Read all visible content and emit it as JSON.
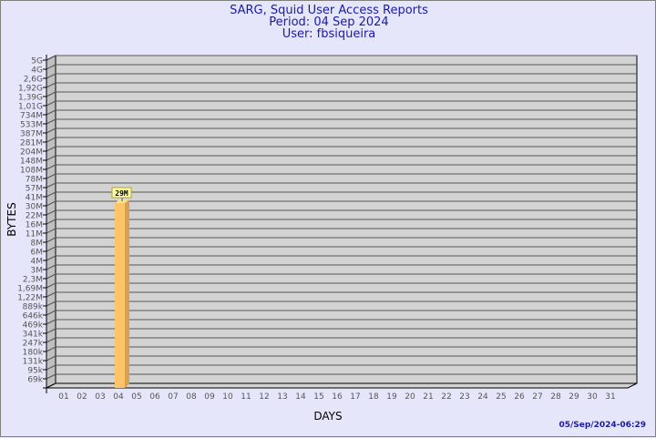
{
  "header": {
    "title": "SARG, Squid User Access Reports",
    "period": "Period: 04 Sep 2024",
    "user": "User: fbsiqueira"
  },
  "footer": {
    "generated": "05/Sep/2024-06:29"
  },
  "colors": {
    "background": "#e6e6fa",
    "plot": "#d3d3d3",
    "bar": "#ffc468",
    "bar_side": "#d9a050",
    "text": "#1a1aa6"
  },
  "chart_data": {
    "type": "bar",
    "xlabel": "DAYS",
    "ylabel": "BYTES",
    "y_scale": "log",
    "grid": true,
    "categories": [
      "01",
      "02",
      "03",
      "04",
      "05",
      "06",
      "07",
      "08",
      "09",
      "10",
      "11",
      "12",
      "13",
      "14",
      "15",
      "16",
      "17",
      "18",
      "19",
      "20",
      "21",
      "22",
      "23",
      "24",
      "25",
      "26",
      "27",
      "28",
      "29",
      "30",
      "31"
    ],
    "y_ticks": [
      "69k",
      "95k",
      "131k",
      "180k",
      "247k",
      "341k",
      "469k",
      "646k",
      "889k",
      "1,22M",
      "1,69M",
      "2,3M",
      "3M",
      "4M",
      "6M",
      "8M",
      "11M",
      "16M",
      "22M",
      "30M",
      "41M",
      "57M",
      "78M",
      "108M",
      "148M",
      "204M",
      "281M",
      "387M",
      "533M",
      "734M",
      "1,01G",
      "1,39G",
      "1,92G",
      "2,6G",
      "4G",
      "5G"
    ],
    "bars": [
      {
        "category": "04",
        "value_label": "29M",
        "tick_position": 18.9
      }
    ]
  }
}
